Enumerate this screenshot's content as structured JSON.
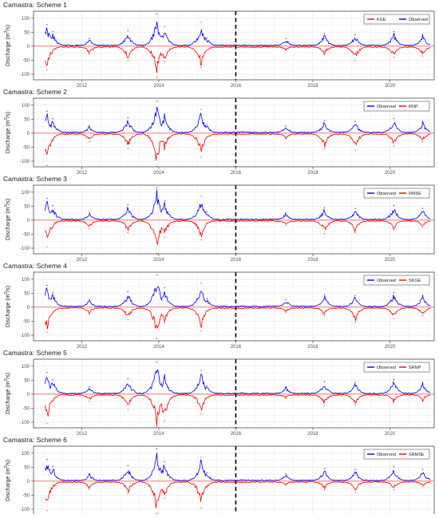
{
  "figure": {
    "ylabel_main": "Discharge (m",
    "ylabel_sup": "3",
    "ylabel_tail": "/s)"
  },
  "colors": {
    "observed": "#0000ff",
    "simulated": "#ff0000",
    "grid": "#ebebeb",
    "frame": "#333333",
    "split_line": "#000000"
  },
  "chart_data": [
    {
      "type": "line",
      "title": "Camastra: Scheme 1",
      "ylabel": "Discharge (m³/s)",
      "ylim": [
        -120,
        125
      ],
      "yticks": [
        100,
        50,
        0,
        -50,
        -100
      ],
      "xlim": [
        2010.75,
        2021.15
      ],
      "xticks": [
        2012,
        2014,
        2016,
        2018,
        2020
      ],
      "show_xticks": true,
      "split_year": 2016,
      "legend": [
        "KGE",
        "Observed"
      ],
      "legend_position": "top-right",
      "grid": true,
      "series": [
        {
          "name": "Observed",
          "values": [
            {
              "x": 2011.1,
              "y": 78
            },
            {
              "x": 2011.25,
              "y": 52
            },
            {
              "x": 2012.2,
              "y": 27
            },
            {
              "x": 2013.2,
              "y": 55
            },
            {
              "x": 2013.95,
              "y": 115
            },
            {
              "x": 2014.15,
              "y": 70
            },
            {
              "x": 2015.1,
              "y": 85
            },
            {
              "x": 2015.25,
              "y": 30
            },
            {
              "x": 2017.3,
              "y": 27
            },
            {
              "x": 2018.3,
              "y": 45
            },
            {
              "x": 2019.1,
              "y": 42
            },
            {
              "x": 2020.1,
              "y": 52
            },
            {
              "x": 2020.85,
              "y": 42
            }
          ]
        },
        {
          "name": "KGE",
          "values": [
            {
              "x": 2011.1,
              "y": -85
            },
            {
              "x": 2012.2,
              "y": -28
            },
            {
              "x": 2013.2,
              "y": -50
            },
            {
              "x": 2013.95,
              "y": -110
            },
            {
              "x": 2014.15,
              "y": -55
            },
            {
              "x": 2015.1,
              "y": -75
            },
            {
              "x": 2017.3,
              "y": -15
            },
            {
              "x": 2018.3,
              "y": -30
            },
            {
              "x": 2019.1,
              "y": -50
            },
            {
              "x": 2020.1,
              "y": -40
            },
            {
              "x": 2020.85,
              "y": -35
            }
          ]
        }
      ]
    },
    {
      "type": "line",
      "title": "Camastra: Scheme 2",
      "ylabel": "Discharge (m³/s)",
      "ylim": [
        -120,
        125
      ],
      "yticks": [
        100,
        50,
        0,
        -50,
        -100
      ],
      "xlim": [
        2010.75,
        2021.15
      ],
      "xticks": [
        2012,
        2014,
        2016,
        2018,
        2020
      ],
      "show_xticks": true,
      "split_year": 2016,
      "legend": [
        "Observed",
        "RNP"
      ],
      "legend_position": "top-right",
      "grid": true,
      "series": [
        {
          "name": "Observed",
          "values": [
            {
              "x": 2011.1,
              "y": 78
            },
            {
              "x": 2011.25,
              "y": 52
            },
            {
              "x": 2012.2,
              "y": 27
            },
            {
              "x": 2013.2,
              "y": 55
            },
            {
              "x": 2013.95,
              "y": 115
            },
            {
              "x": 2014.15,
              "y": 70
            },
            {
              "x": 2015.1,
              "y": 85
            },
            {
              "x": 2015.25,
              "y": 30
            },
            {
              "x": 2017.3,
              "y": 27
            },
            {
              "x": 2018.3,
              "y": 45
            },
            {
              "x": 2019.1,
              "y": 42
            },
            {
              "x": 2020.1,
              "y": 52
            },
            {
              "x": 2020.85,
              "y": 42
            }
          ]
        },
        {
          "name": "RNP",
          "values": [
            {
              "x": 2011.1,
              "y": -115
            },
            {
              "x": 2012.2,
              "y": -30
            },
            {
              "x": 2013.2,
              "y": -55
            },
            {
              "x": 2013.95,
              "y": -118
            },
            {
              "x": 2014.15,
              "y": -60
            },
            {
              "x": 2015.1,
              "y": -85
            },
            {
              "x": 2017.3,
              "y": -20
            },
            {
              "x": 2018.3,
              "y": -55
            },
            {
              "x": 2019.1,
              "y": -60
            },
            {
              "x": 2020.1,
              "y": -45
            },
            {
              "x": 2020.85,
              "y": -30
            }
          ]
        }
      ]
    },
    {
      "type": "line",
      "title": "Camastra: Scheme 3",
      "ylabel": "Discharge (m³/s)",
      "ylim": [
        -120,
        125
      ],
      "yticks": [
        100,
        50,
        0,
        -50,
        -100
      ],
      "xlim": [
        2010.75,
        2021.15
      ],
      "xticks": [
        2012,
        2014,
        2016,
        2018,
        2020
      ],
      "show_xticks": true,
      "split_year": 2016,
      "legend": [
        "Observed",
        "RMSE"
      ],
      "legend_position": "top-right",
      "grid": true,
      "series": [
        {
          "name": "Observed",
          "values": [
            {
              "x": 2011.1,
              "y": 78
            },
            {
              "x": 2011.25,
              "y": 52
            },
            {
              "x": 2012.2,
              "y": 27
            },
            {
              "x": 2013.2,
              "y": 55
            },
            {
              "x": 2013.95,
              "y": 115
            },
            {
              "x": 2014.15,
              "y": 70
            },
            {
              "x": 2015.1,
              "y": 85
            },
            {
              "x": 2015.25,
              "y": 30
            },
            {
              "x": 2017.3,
              "y": 27
            },
            {
              "x": 2018.3,
              "y": 45
            },
            {
              "x": 2019.1,
              "y": 42
            },
            {
              "x": 2020.1,
              "y": 52
            },
            {
              "x": 2020.85,
              "y": 42
            }
          ]
        },
        {
          "name": "RMSE",
          "values": [
            {
              "x": 2011.1,
              "y": -95
            },
            {
              "x": 2012.2,
              "y": -30
            },
            {
              "x": 2013.2,
              "y": -45
            },
            {
              "x": 2013.95,
              "y": -118
            },
            {
              "x": 2014.15,
              "y": -60
            },
            {
              "x": 2015.1,
              "y": -70
            },
            {
              "x": 2017.3,
              "y": -18
            },
            {
              "x": 2018.3,
              "y": -48
            },
            {
              "x": 2019.1,
              "y": -45
            },
            {
              "x": 2020.1,
              "y": -35
            },
            {
              "x": 2020.85,
              "y": -25
            }
          ]
        }
      ]
    },
    {
      "type": "line",
      "title": "Camastra: Scheme 4",
      "ylabel": "Discharge (m³/s)",
      "ylim": [
        -120,
        125
      ],
      "yticks": [
        100,
        50,
        0,
        -50,
        -100
      ],
      "xlim": [
        2010.75,
        2021.15
      ],
      "xticks": [
        2012,
        2014,
        2016,
        2018,
        2020
      ],
      "show_xticks": true,
      "split_year": 2016,
      "legend": [
        "Observed",
        "SKGE"
      ],
      "legend_position": "top-right",
      "grid": true,
      "series": [
        {
          "name": "Observed",
          "values": [
            {
              "x": 2011.1,
              "y": 78
            },
            {
              "x": 2011.25,
              "y": 52
            },
            {
              "x": 2012.2,
              "y": 27
            },
            {
              "x": 2013.2,
              "y": 55
            },
            {
              "x": 2013.95,
              "y": 115
            },
            {
              "x": 2014.15,
              "y": 70
            },
            {
              "x": 2015.1,
              "y": 85
            },
            {
              "x": 2015.25,
              "y": 30
            },
            {
              "x": 2017.3,
              "y": 27
            },
            {
              "x": 2018.3,
              "y": 45
            },
            {
              "x": 2019.1,
              "y": 42
            },
            {
              "x": 2020.1,
              "y": 52
            },
            {
              "x": 2020.85,
              "y": 42
            }
          ]
        },
        {
          "name": "SKGE",
          "values": [
            {
              "x": 2011.1,
              "y": -90
            },
            {
              "x": 2012.2,
              "y": -25
            },
            {
              "x": 2013.2,
              "y": -45
            },
            {
              "x": 2013.95,
              "y": -112
            },
            {
              "x": 2014.15,
              "y": -55
            },
            {
              "x": 2015.1,
              "y": -85
            },
            {
              "x": 2017.3,
              "y": -18
            },
            {
              "x": 2018.3,
              "y": -30
            },
            {
              "x": 2019.1,
              "y": -55
            },
            {
              "x": 2020.1,
              "y": -40
            },
            {
              "x": 2020.85,
              "y": -30
            }
          ]
        }
      ]
    },
    {
      "type": "line",
      "title": "Camastra: Scheme 5",
      "ylabel": "Discharge (m³/s)",
      "ylim": [
        -120,
        125
      ],
      "yticks": [
        100,
        50,
        0,
        -50,
        -100
      ],
      "xlim": [
        2010.75,
        2021.15
      ],
      "xticks": [
        2012,
        2014,
        2016,
        2018,
        2020
      ],
      "show_xticks": true,
      "split_year": 2016,
      "legend": [
        "Observed",
        "SRNP"
      ],
      "legend_position": "top-right",
      "grid": true,
      "series": [
        {
          "name": "Observed",
          "values": [
            {
              "x": 2011.1,
              "y": 78
            },
            {
              "x": 2011.25,
              "y": 52
            },
            {
              "x": 2012.2,
              "y": 27
            },
            {
              "x": 2013.2,
              "y": 55
            },
            {
              "x": 2013.95,
              "y": 115
            },
            {
              "x": 2014.15,
              "y": 70
            },
            {
              "x": 2015.1,
              "y": 85
            },
            {
              "x": 2015.25,
              "y": 30
            },
            {
              "x": 2017.3,
              "y": 27
            },
            {
              "x": 2018.3,
              "y": 45
            },
            {
              "x": 2019.1,
              "y": 42
            },
            {
              "x": 2020.1,
              "y": 52
            },
            {
              "x": 2020.85,
              "y": 42
            }
          ]
        },
        {
          "name": "SRNP",
          "values": [
            {
              "x": 2011.1,
              "y": -105
            },
            {
              "x": 2012.2,
              "y": -25
            },
            {
              "x": 2013.2,
              "y": -55
            },
            {
              "x": 2013.95,
              "y": -118
            },
            {
              "x": 2014.15,
              "y": -95
            },
            {
              "x": 2015.1,
              "y": -70
            },
            {
              "x": 2017.3,
              "y": -15
            },
            {
              "x": 2018.3,
              "y": -40
            },
            {
              "x": 2019.1,
              "y": -40
            },
            {
              "x": 2020.1,
              "y": -30
            },
            {
              "x": 2020.85,
              "y": -25
            }
          ]
        }
      ]
    },
    {
      "type": "line",
      "title": "Camastra: Scheme 6",
      "ylabel": "Discharge (m³/s)",
      "ylim": [
        -120,
        125
      ],
      "yticks": [
        100,
        50,
        0,
        -50,
        -100
      ],
      "xlim": [
        2010.75,
        2021.15
      ],
      "xticks": [
        2012,
        2014,
        2016,
        2018,
        2020
      ],
      "show_xticks": true,
      "split_year": 2016,
      "legend": [
        "Observed",
        "SRMSE"
      ],
      "legend_position": "top-right",
      "grid": true,
      "series": [
        {
          "name": "Observed",
          "values": [
            {
              "x": 2011.1,
              "y": 78
            },
            {
              "x": 2011.25,
              "y": 52
            },
            {
              "x": 2012.2,
              "y": 27
            },
            {
              "x": 2013.2,
              "y": 55
            },
            {
              "x": 2013.95,
              "y": 115
            },
            {
              "x": 2014.15,
              "y": 70
            },
            {
              "x": 2015.1,
              "y": 85
            },
            {
              "x": 2015.25,
              "y": 30
            },
            {
              "x": 2017.3,
              "y": 27
            },
            {
              "x": 2018.3,
              "y": 45
            },
            {
              "x": 2019.1,
              "y": 42
            },
            {
              "x": 2020.1,
              "y": 52
            },
            {
              "x": 2020.85,
              "y": 42
            }
          ]
        },
        {
          "name": "SRMSE",
          "values": [
            {
              "x": 2011.1,
              "y": -105
            },
            {
              "x": 2012.2,
              "y": -30
            },
            {
              "x": 2013.2,
              "y": -45
            },
            {
              "x": 2013.95,
              "y": -115
            },
            {
              "x": 2014.15,
              "y": -60
            },
            {
              "x": 2015.1,
              "y": -95
            },
            {
              "x": 2017.3,
              "y": -15
            },
            {
              "x": 2018.3,
              "y": -30
            },
            {
              "x": 2019.1,
              "y": -40
            },
            {
              "x": 2020.1,
              "y": -30
            },
            {
              "x": 2020.85,
              "y": -20
            }
          ]
        }
      ]
    }
  ]
}
